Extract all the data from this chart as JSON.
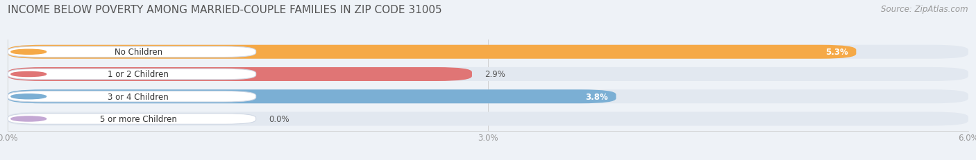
{
  "title": "INCOME BELOW POVERTY AMONG MARRIED-COUPLE FAMILIES IN ZIP CODE 31005",
  "source": "Source: ZipAtlas.com",
  "categories": [
    "No Children",
    "1 or 2 Children",
    "3 or 4 Children",
    "5 or more Children"
  ],
  "values": [
    5.3,
    2.9,
    3.8,
    0.0
  ],
  "bar_colors": [
    "#F5A947",
    "#E07575",
    "#7BAFD4",
    "#C4A8D4"
  ],
  "background_color": "#eef2f7",
  "bar_bg_color": "#e2e8f0",
  "xlim": [
    0,
    6.0
  ],
  "xticks": [
    0.0,
    3.0,
    6.0
  ],
  "xtick_labels": [
    "0.0%",
    "3.0%",
    "6.0%"
  ],
  "title_fontsize": 11,
  "source_fontsize": 8.5,
  "label_fontsize": 8.5,
  "value_fontsize": 8.5,
  "bar_height": 0.62,
  "fig_bg_color": "#eef2f7",
  "value_text_inside": [
    true,
    false,
    true,
    false
  ],
  "value_text_colors_inside": [
    "white",
    "#555555",
    "white",
    "#555555"
  ]
}
